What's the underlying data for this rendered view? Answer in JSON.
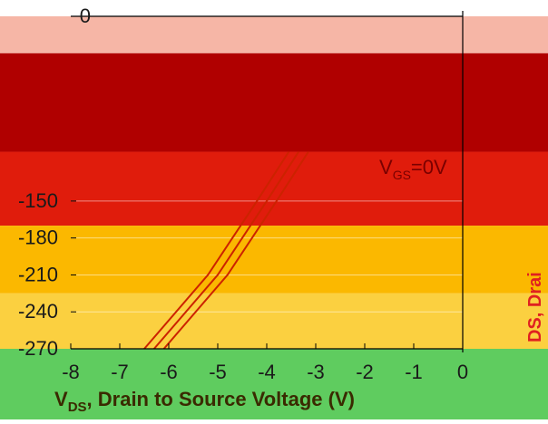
{
  "chart_data": {
    "type": "line",
    "title": "",
    "xlabel": "V_DS, Drain to Source Voltage (V)",
    "xlabel_main": "V",
    "xlabel_sub": "DS",
    "xlabel_rest": ", Drain to Source Voltage (V)",
    "ylabel_visible": "DS, Drai",
    "xlim": [
      -8,
      0
    ],
    "x_ticks": [
      -8,
      -7,
      -6,
      -5,
      -4,
      -3,
      -2,
      -1,
      0
    ],
    "x_tick_labels": [
      "-8",
      "-7",
      "-6",
      "-5",
      "-4",
      "-3",
      "-2",
      "-1",
      "0"
    ],
    "ylim": [
      -270,
      0
    ],
    "y_ticks": [
      0,
      -150,
      -180,
      -210,
      -240,
      -270
    ],
    "y_tick_labels": [
      "0",
      "-150",
      "-180",
      "-210",
      "-240",
      "-270"
    ],
    "annotation": "V_GS=0V",
    "annotation_main": "V",
    "annotation_sub": "GS",
    "annotation_rest": "=0V",
    "bands": [
      {
        "from": 0,
        "to": -30,
        "color": "#f6b6a6"
      },
      {
        "from": -30,
        "to": -110,
        "color": "#b00000"
      },
      {
        "from": -110,
        "to": -170,
        "color": "#e01c0c"
      },
      {
        "from": -170,
        "to": -225,
        "color": "#fbb800"
      },
      {
        "from": -225,
        "to": -270,
        "color": "#fbd040"
      },
      {
        "from": -270,
        "to": -330,
        "color": "#5fcc5f"
      }
    ],
    "series": [
      {
        "name": "",
        "x": [
          -6.5,
          -5.2,
          -4.2,
          -3.55
        ],
        "y": [
          -270,
          -210,
          -150,
          -110
        ],
        "color": "#cc2200"
      },
      {
        "name": "",
        "x": [
          -6.3,
          -5.0,
          -4.0,
          -3.35
        ],
        "y": [
          -270,
          -210,
          -150,
          -110
        ],
        "color": "#cc2200"
      },
      {
        "name": "",
        "x": [
          -6.1,
          -4.8,
          -3.8,
          -3.15
        ],
        "y": [
          -270,
          -210,
          -150,
          -110
        ],
        "color": "#cc2200"
      }
    ]
  }
}
